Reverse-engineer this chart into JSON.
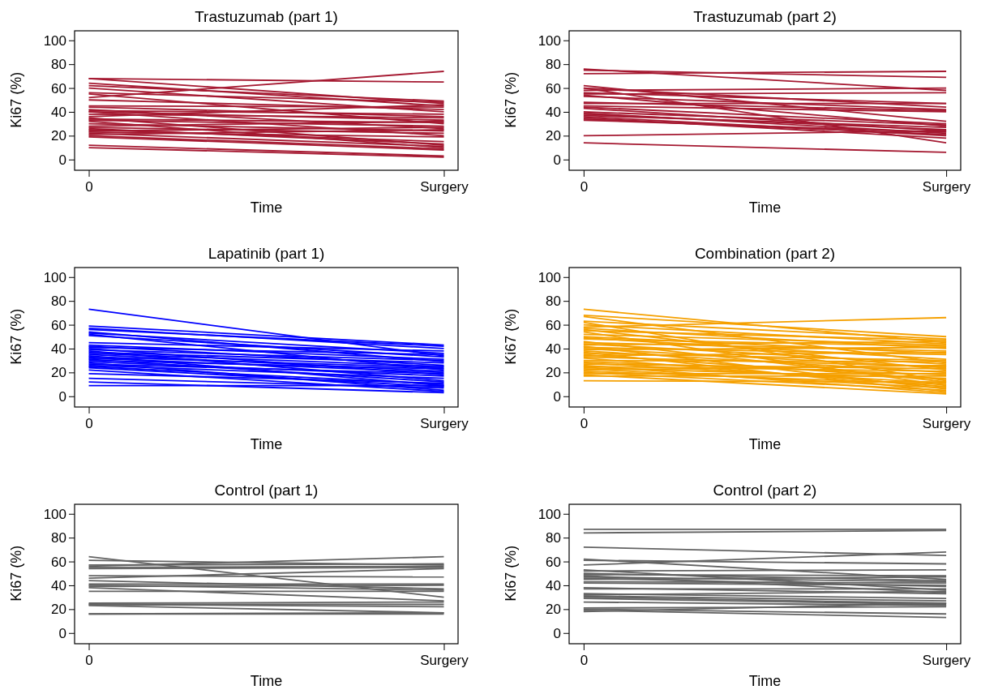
{
  "chart_data": [
    {
      "type": "line",
      "title": "Trastuzumab (part 1)",
      "xlabel": "Time",
      "ylabel": "Ki67 (%)",
      "categories": [
        "0",
        "Surgery"
      ],
      "color": "#a51931",
      "ylim": [
        -9,
        108
      ],
      "yticks": [
        0,
        20,
        40,
        60,
        80,
        100
      ],
      "series": [
        {
          "values": [
            68,
            65
          ]
        },
        {
          "values": [
            52,
            74
          ]
        },
        {
          "values": [
            68,
            47
          ]
        },
        {
          "values": [
            64,
            45
          ]
        },
        {
          "values": [
            62,
            49
          ]
        },
        {
          "values": [
            60,
            40
          ]
        },
        {
          "values": [
            56,
            48
          ]
        },
        {
          "values": [
            55,
            30
          ]
        },
        {
          "values": [
            50,
            42
          ]
        },
        {
          "values": [
            45,
            44
          ]
        },
        {
          "values": [
            44,
            36
          ]
        },
        {
          "values": [
            42,
            26
          ]
        },
        {
          "values": [
            41,
            38
          ]
        },
        {
          "values": [
            40,
            33
          ]
        },
        {
          "values": [
            40,
            20
          ]
        },
        {
          "values": [
            38,
            35
          ]
        },
        {
          "values": [
            36,
            46
          ]
        },
        {
          "values": [
            35,
            12
          ]
        },
        {
          "values": [
            34,
            31
          ]
        },
        {
          "values": [
            33,
            28
          ]
        },
        {
          "values": [
            32,
            10
          ]
        },
        {
          "values": [
            30,
            24
          ]
        },
        {
          "values": [
            28,
            32
          ]
        },
        {
          "values": [
            27,
            22
          ]
        },
        {
          "values": [
            26,
            13
          ]
        },
        {
          "values": [
            25,
            15
          ]
        },
        {
          "values": [
            24,
            27
          ]
        },
        {
          "values": [
            23,
            19
          ]
        },
        {
          "values": [
            22,
            11
          ]
        },
        {
          "values": [
            21,
            25
          ]
        },
        {
          "values": [
            20,
            9
          ]
        },
        {
          "values": [
            19,
            8
          ]
        },
        {
          "values": [
            12,
            3
          ]
        },
        {
          "values": [
            10,
            2
          ]
        }
      ]
    },
    {
      "type": "line",
      "title": "Trastuzumab (part 2)",
      "xlabel": "Time",
      "ylabel": "Ki67 (%)",
      "categories": [
        "0",
        "Surgery"
      ],
      "color": "#a51931",
      "ylim": [
        -9,
        108
      ],
      "yticks": [
        0,
        20,
        40,
        60,
        80,
        100
      ],
      "series": [
        {
          "values": [
            76,
            58
          ]
        },
        {
          "values": [
            72,
            74
          ]
        },
        {
          "values": [
            75,
            69
          ]
        },
        {
          "values": [
            62,
            32
          ]
        },
        {
          "values": [
            60,
            44
          ]
        },
        {
          "values": [
            58,
            60
          ]
        },
        {
          "values": [
            56,
            47
          ]
        },
        {
          "values": [
            55,
            56
          ]
        },
        {
          "values": [
            54,
            28
          ]
        },
        {
          "values": [
            53,
            42
          ]
        },
        {
          "values": [
            48,
            41
          ]
        },
        {
          "values": [
            47,
            47
          ]
        },
        {
          "values": [
            45,
            40
          ]
        },
        {
          "values": [
            44,
            30
          ]
        },
        {
          "values": [
            43,
            24
          ]
        },
        {
          "values": [
            40,
            29
          ]
        },
        {
          "values": [
            39,
            22
          ]
        },
        {
          "values": [
            38,
            25
          ]
        },
        {
          "values": [
            37,
            27
          ]
        },
        {
          "values": [
            36,
            20
          ]
        },
        {
          "values": [
            35,
            18
          ]
        },
        {
          "values": [
            34,
            21
          ]
        },
        {
          "values": [
            33,
            23
          ]
        },
        {
          "values": [
            60,
            14
          ]
        },
        {
          "values": [
            20,
            24
          ]
        },
        {
          "values": [
            14,
            6
          ]
        }
      ]
    },
    {
      "type": "line",
      "title": "Lapatinib (part 1)",
      "xlabel": "Time",
      "ylabel": "Ki67 (%)",
      "categories": [
        "0",
        "Surgery"
      ],
      "color": "#0000ff",
      "ylim": [
        -9,
        108
      ],
      "yticks": [
        0,
        20,
        40,
        60,
        80,
        100
      ],
      "series": [
        {
          "values": [
            73,
            34
          ]
        },
        {
          "values": [
            59,
            43
          ]
        },
        {
          "values": [
            57,
            40
          ]
        },
        {
          "values": [
            56,
            42
          ]
        },
        {
          "values": [
            54,
            29
          ]
        },
        {
          "values": [
            53,
            36
          ]
        },
        {
          "values": [
            52,
            22
          ]
        },
        {
          "values": [
            51,
            33
          ]
        },
        {
          "values": [
            45,
            38
          ]
        },
        {
          "values": [
            43,
            31
          ]
        },
        {
          "values": [
            42,
            26
          ]
        },
        {
          "values": [
            41,
            35
          ]
        },
        {
          "values": [
            40,
            18
          ]
        },
        {
          "values": [
            39,
            30
          ]
        },
        {
          "values": [
            38,
            13
          ]
        },
        {
          "values": [
            37,
            28
          ]
        },
        {
          "values": [
            36,
            25
          ]
        },
        {
          "values": [
            35,
            21
          ]
        },
        {
          "values": [
            34,
            9
          ]
        },
        {
          "values": [
            33,
            24
          ]
        },
        {
          "values": [
            32,
            20
          ]
        },
        {
          "values": [
            31,
            12
          ]
        },
        {
          "values": [
            30,
            23
          ]
        },
        {
          "values": [
            29,
            17
          ]
        },
        {
          "values": [
            28,
            5
          ]
        },
        {
          "values": [
            27,
            19
          ]
        },
        {
          "values": [
            26,
            15
          ]
        },
        {
          "values": [
            25,
            10
          ]
        },
        {
          "values": [
            24,
            8
          ]
        },
        {
          "values": [
            22,
            4
          ]
        },
        {
          "values": [
            19,
            11
          ]
        },
        {
          "values": [
            15,
            7
          ]
        },
        {
          "values": [
            12,
            3
          ]
        },
        {
          "values": [
            9,
            9
          ]
        }
      ]
    },
    {
      "type": "line",
      "title": "Combination (part 2)",
      "xlabel": "Time",
      "ylabel": "Ki67 (%)",
      "categories": [
        "0",
        "Surgery"
      ],
      "color": "#f5a000",
      "ylim": [
        -9,
        108
      ],
      "yticks": [
        0,
        20,
        40,
        60,
        80,
        100
      ],
      "series": [
        {
          "values": [
            73,
            45
          ]
        },
        {
          "values": [
            68,
            50
          ]
        },
        {
          "values": [
            67,
            28
          ]
        },
        {
          "values": [
            63,
            48
          ]
        },
        {
          "values": [
            62,
            13
          ]
        },
        {
          "values": [
            60,
            44
          ]
        },
        {
          "values": [
            58,
            66
          ]
        },
        {
          "values": [
            57,
            40
          ]
        },
        {
          "values": [
            56,
            22
          ]
        },
        {
          "values": [
            55,
            47
          ]
        },
        {
          "values": [
            54,
            9
          ]
        },
        {
          "values": [
            52,
            43
          ]
        },
        {
          "values": [
            50,
            36
          ]
        },
        {
          "values": [
            49,
            31
          ]
        },
        {
          "values": [
            48,
            42
          ]
        },
        {
          "values": [
            46,
            12
          ]
        },
        {
          "values": [
            45,
            38
          ]
        },
        {
          "values": [
            44,
            27
          ]
        },
        {
          "values": [
            43,
            46
          ]
        },
        {
          "values": [
            42,
            6
          ]
        },
        {
          "values": [
            41,
            35
          ]
        },
        {
          "values": [
            40,
            24
          ]
        },
        {
          "values": [
            39,
            41
          ]
        },
        {
          "values": [
            38,
            20
          ]
        },
        {
          "values": [
            37,
            4
          ]
        },
        {
          "values": [
            36,
            30
          ]
        },
        {
          "values": [
            35,
            14
          ]
        },
        {
          "values": [
            34,
            37
          ]
        },
        {
          "values": [
            33,
            25
          ]
        },
        {
          "values": [
            32,
            8
          ]
        },
        {
          "values": [
            30,
            29
          ]
        },
        {
          "values": [
            29,
            18
          ]
        },
        {
          "values": [
            28,
            11
          ]
        },
        {
          "values": [
            27,
            23
          ]
        },
        {
          "values": [
            26,
            3
          ]
        },
        {
          "values": [
            25,
            21
          ]
        },
        {
          "values": [
            24,
            15
          ]
        },
        {
          "values": [
            23,
            7
          ]
        },
        {
          "values": [
            22,
            26
          ]
        },
        {
          "values": [
            21,
            10
          ]
        },
        {
          "values": [
            20,
            5
          ]
        },
        {
          "values": [
            19,
            19
          ]
        },
        {
          "values": [
            18,
            2
          ]
        },
        {
          "values": [
            17,
            17
          ]
        },
        {
          "values": [
            13,
            12
          ]
        }
      ]
    },
    {
      "type": "line",
      "title": "Control (part 1)",
      "xlabel": "Time",
      "ylabel": "Ki67 (%)",
      "categories": [
        "0",
        "Surgery"
      ],
      "color": "#636363",
      "ylim": [
        -9,
        108
      ],
      "yticks": [
        0,
        20,
        40,
        60,
        80,
        100
      ],
      "series": [
        {
          "values": [
            64,
            30
          ]
        },
        {
          "values": [
            61,
            57
          ]
        },
        {
          "values": [
            57,
            58
          ]
        },
        {
          "values": [
            56,
            64
          ]
        },
        {
          "values": [
            55,
            56
          ]
        },
        {
          "values": [
            54,
            55
          ]
        },
        {
          "values": [
            48,
            47
          ]
        },
        {
          "values": [
            46,
            54
          ]
        },
        {
          "values": [
            44,
            37
          ]
        },
        {
          "values": [
            41,
            41
          ]
        },
        {
          "values": [
            40,
            36
          ]
        },
        {
          "values": [
            39,
            40
          ]
        },
        {
          "values": [
            38,
            27
          ]
        },
        {
          "values": [
            35,
            35
          ]
        },
        {
          "values": [
            25,
            26
          ]
        },
        {
          "values": [
            24,
            24
          ]
        },
        {
          "values": [
            24,
            22
          ]
        },
        {
          "values": [
            23,
            17
          ]
        },
        {
          "values": [
            16,
            16
          ]
        },
        {
          "values": [
            16,
            17
          ]
        }
      ]
    },
    {
      "type": "line",
      "title": "Control (part 2)",
      "xlabel": "Time",
      "ylabel": "Ki67 (%)",
      "categories": [
        "0",
        "Surgery"
      ],
      "color": "#636363",
      "ylim": [
        -9,
        108
      ],
      "yticks": [
        0,
        20,
        40,
        60,
        80,
        100
      ],
      "series": [
        {
          "values": [
            87,
            87
          ]
        },
        {
          "values": [
            84,
            86
          ]
        },
        {
          "values": [
            72,
            65
          ]
        },
        {
          "values": [
            62,
            45
          ]
        },
        {
          "values": [
            61,
            58
          ]
        },
        {
          "values": [
            57,
            68
          ]
        },
        {
          "values": [
            53,
            36
          ]
        },
        {
          "values": [
            52,
            53
          ]
        },
        {
          "values": [
            50,
            44
          ]
        },
        {
          "values": [
            49,
            48
          ]
        },
        {
          "values": [
            48,
            34
          ]
        },
        {
          "values": [
            47,
            43
          ]
        },
        {
          "values": [
            46,
            39
          ]
        },
        {
          "values": [
            45,
            47
          ]
        },
        {
          "values": [
            43,
            42
          ]
        },
        {
          "values": [
            42,
            40
          ]
        },
        {
          "values": [
            38,
            33
          ]
        },
        {
          "values": [
            37,
            37
          ]
        },
        {
          "values": [
            33,
            29
          ]
        },
        {
          "values": [
            32,
            35
          ]
        },
        {
          "values": [
            31,
            27
          ]
        },
        {
          "values": [
            30,
            25
          ]
        },
        {
          "values": [
            29,
            24
          ]
        },
        {
          "values": [
            26,
            23
          ]
        },
        {
          "values": [
            21,
            22
          ]
        },
        {
          "values": [
            20,
            16
          ]
        },
        {
          "values": [
            19,
            13
          ]
        },
        {
          "values": [
            18,
            25
          ]
        }
      ]
    }
  ]
}
